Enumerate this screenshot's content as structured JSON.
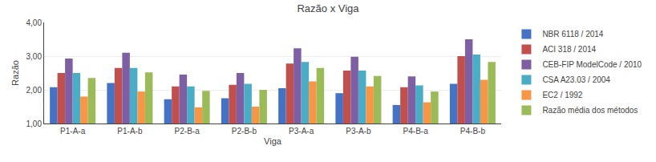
{
  "chart_data": {
    "type": "bar",
    "title": "Razão x Viga",
    "xlabel": "Viga",
    "ylabel": "Razão",
    "categories": [
      "P1-A-a",
      "P1-A-b",
      "P2-B-a",
      "P2-B-b",
      "P3-A-a",
      "P3-A-b",
      "P4-B-a",
      "P4-B-b"
    ],
    "series": [
      {
        "name": "NBR 6118 / 2014",
        "color": "#4472C4",
        "values": [
          2.08,
          2.2,
          1.72,
          1.75,
          2.05,
          1.9,
          1.55,
          2.18
        ]
      },
      {
        "name": "ACI 318 / 2014",
        "color": "#C0504D",
        "values": [
          2.5,
          2.65,
          2.1,
          2.15,
          2.78,
          2.57,
          2.08,
          3.0
        ]
      },
      {
        "name": "CEB-FIP ModelCode / 2010",
        "color": "#7F5FA4",
        "values": [
          2.93,
          3.1,
          2.45,
          2.5,
          3.23,
          2.98,
          2.4,
          3.5
        ]
      },
      {
        "name": "CSA A23.03 / 2004",
        "color": "#4BACC6",
        "values": [
          2.5,
          2.65,
          2.1,
          2.18,
          2.83,
          2.57,
          2.13,
          3.05
        ]
      },
      {
        "name": "EC2 / 1992",
        "color": "#F79646",
        "values": [
          1.8,
          1.95,
          1.48,
          1.5,
          2.25,
          2.1,
          1.63,
          2.3
        ]
      },
      {
        "name": "Razão média dos métodos",
        "color": "#9BBB59",
        "values": [
          2.35,
          2.52,
          1.97,
          2.0,
          2.65,
          2.41,
          1.95,
          2.83
        ]
      }
    ],
    "ylim": [
      1.0,
      4.0
    ],
    "yticks": [
      {
        "value": 1.0,
        "label": "1,00"
      },
      {
        "value": 2.0,
        "label": "2,00"
      },
      {
        "value": 3.0,
        "label": "3,00"
      },
      {
        "value": 4.0,
        "label": "4,00"
      }
    ],
    "grid": true,
    "legend": "right"
  }
}
